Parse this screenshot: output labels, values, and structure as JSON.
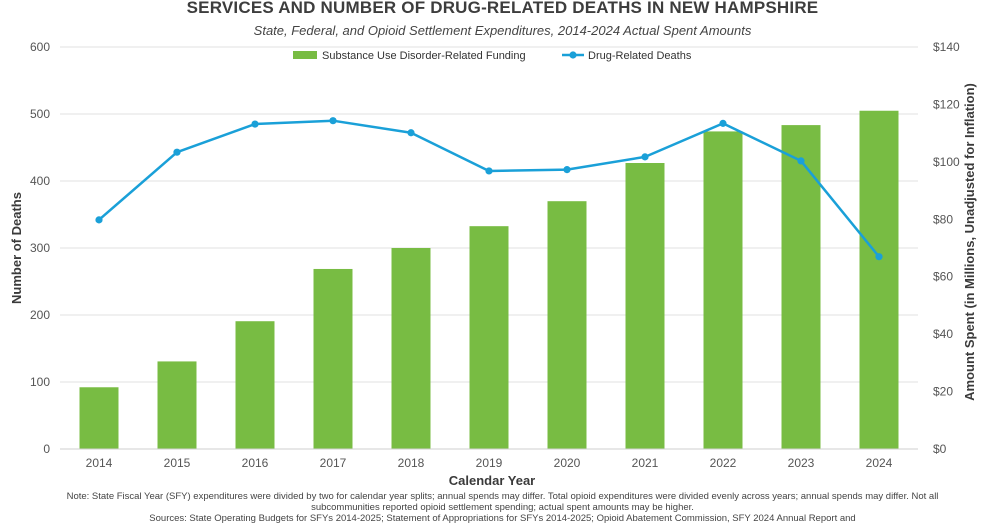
{
  "title": "SERVICES AND NUMBER OF DRUG-RELATED DEATHS IN NEW HAMPSHIRE",
  "subtitle": "State, Federal, and Opioid Settlement Expenditures, 2014-2024 Actual Spent Amounts",
  "note": "Note: State Fiscal Year (SFY) expenditures were divided by two for calendar year splits; annual spends may differ. Total opioid expenditures were divided evenly across years; annual spends may differ. Not all subcommunities reported opioid settlement spending; actual spent amounts may be higher.",
  "sources": "Sources: State Operating Budgets for SFYs 2014-2025; Statement of Appropriations for SFYs 2014-2025; Opioid Abatement Commission, SFY 2024 Annual Report and",
  "colors": {
    "bar": "#78bc43",
    "line": "#1aa0d8",
    "grid": "#e2e2e2"
  },
  "chart_data": {
    "type": "bar",
    "categories": [
      "2014",
      "2015",
      "2016",
      "2017",
      "2018",
      "2019",
      "2020",
      "2021",
      "2022",
      "2023",
      "2024"
    ],
    "xlabel": "Calendar Year",
    "ylabel": "Number of Deaths",
    "y2label": "Amount Spent (in Millions, Unadjusted for Inflation)",
    "ylim": [
      0,
      600
    ],
    "y2lim": [
      0,
      140
    ],
    "yticks": [
      "0",
      "100",
      "200",
      "300",
      "400",
      "500",
      "600"
    ],
    "y2ticks": [
      "$0",
      "$20",
      "$40",
      "$60",
      "$80",
      "$100",
      "$120",
      "$140"
    ],
    "legend_position": "top-center",
    "grid": true,
    "series": [
      {
        "name": "Substance Use Disorder-Related Funding",
        "kind": "bar",
        "axis": "right",
        "values": [
          21.5,
          30.5,
          44.5,
          62.7,
          70.0,
          77.6,
          86.3,
          99.6,
          110.6,
          112.8,
          117.8
        ]
      },
      {
        "name": "Drug-Related Deaths",
        "kind": "line",
        "axis": "left",
        "values": [
          342,
          443,
          485,
          490,
          472,
          415,
          417,
          436,
          486,
          430,
          287
        ]
      }
    ]
  }
}
